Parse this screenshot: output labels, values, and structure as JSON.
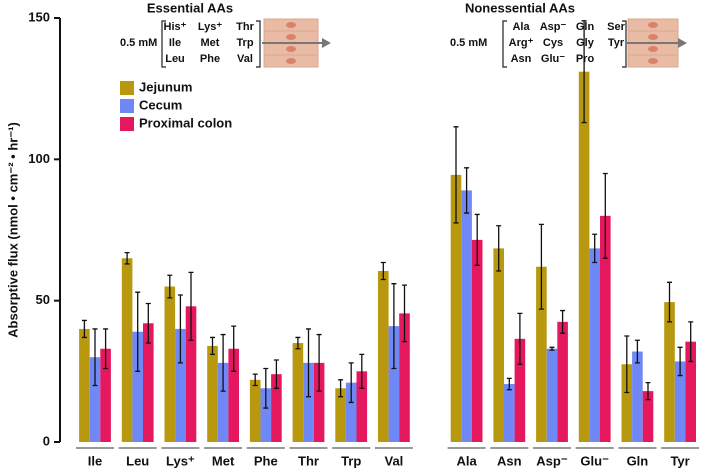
{
  "chart_data": {
    "type": "bar",
    "ylabel": "Absorptive flux (nmol • cm⁻² • hr⁻¹)",
    "categories": [
      "Ile",
      "Leu",
      "Lys⁺",
      "Met",
      "Phe",
      "Thr",
      "Trp",
      "Val",
      "Ala",
      "Asn",
      "Asp⁻",
      "Glu⁻",
      "Gln",
      "Tyr"
    ],
    "series": [
      {
        "name": "Jejunum",
        "color": "#b8980f",
        "values": [
          40,
          65,
          55,
          34,
          22,
          35,
          19,
          60.5,
          94.5,
          68.5,
          62,
          131,
          27.5,
          49.5
        ],
        "errors": [
          3,
          2,
          4,
          3,
          2,
          2,
          3,
          3,
          17,
          8,
          15,
          18,
          10,
          7
        ]
      },
      {
        "name": "Cecum",
        "color": "#7088f5",
        "values": [
          30,
          39,
          40,
          28,
          19,
          28,
          21,
          41,
          89,
          20.5,
          33,
          68.5,
          32,
          28.5
        ],
        "errors": [
          10,
          14,
          12,
          10,
          7,
          12,
          7,
          15,
          8,
          2,
          0.5,
          5,
          4,
          5
        ]
      },
      {
        "name": "Proximal colon",
        "color": "#e5175f",
        "values": [
          33,
          42,
          48,
          33,
          24,
          28,
          25,
          45.5,
          71.5,
          36.5,
          42.5,
          80,
          18,
          35.5
        ],
        "errors": [
          7,
          7,
          12,
          8,
          5,
          10,
          6,
          10,
          9,
          9,
          4,
          15,
          3,
          7
        ]
      }
    ],
    "ylim": [
      0,
      150
    ],
    "yticks": [
      0,
      50,
      100,
      150
    ],
    "insets": [
      {
        "title": "Essential AAs",
        "concentration": "0.5 mM",
        "amino_acids": [
          [
            "His⁺",
            "Lys⁺",
            "Thr"
          ],
          [
            "Ile",
            "Met",
            "Trp"
          ],
          [
            "Leu",
            "Phe",
            "Val"
          ]
        ]
      },
      {
        "title": "Nonessential AAs",
        "concentration": "0.5 mM",
        "amino_acids": [
          [
            "Ala",
            "Asp⁻",
            "Gln",
            "Ser"
          ],
          [
            "Arg⁺",
            "Cys",
            "Gly",
            "Tyr"
          ],
          [
            "Asn",
            "Glu⁻",
            "Pro"
          ]
        ]
      }
    ]
  }
}
